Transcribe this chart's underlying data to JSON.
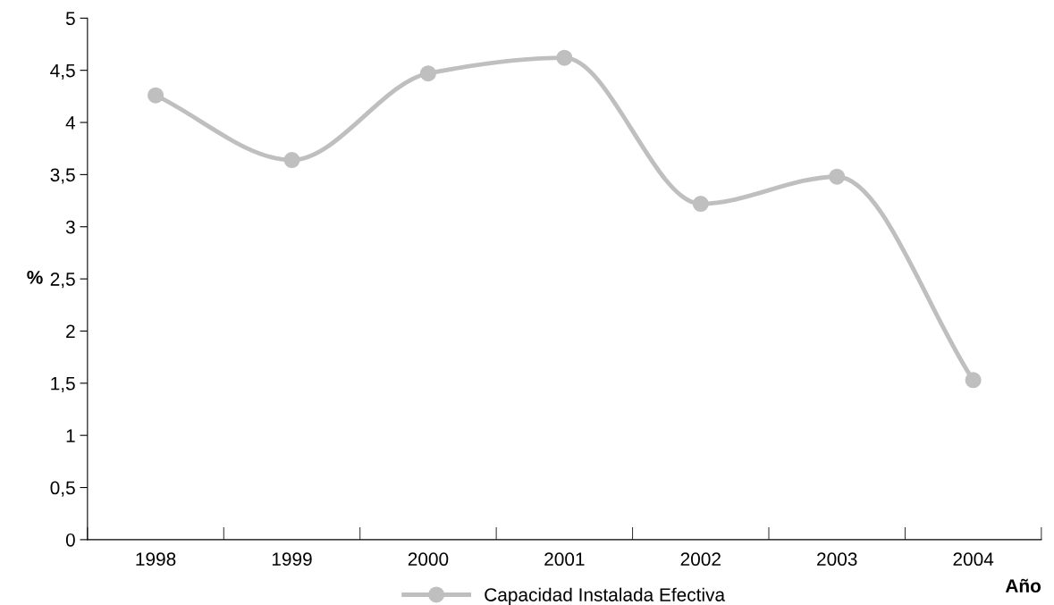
{
  "chart_data": {
    "type": "line",
    "xlabel": "Año",
    "ylabel": "%",
    "categories": [
      "1998",
      "1999",
      "2000",
      "2001",
      "2002",
      "2003",
      "2004"
    ],
    "series": [
      {
        "name": "Capacidad Instalada Efectiva",
        "color": "#bfbfbf",
        "values": [
          4.26,
          3.64,
          4.47,
          4.62,
          3.22,
          3.48,
          1.53
        ]
      }
    ],
    "ylim": [
      0,
      5
    ],
    "yticks": [
      0,
      {
        "value": 0.5,
        "label": "0,5"
      },
      1,
      {
        "value": 1.5,
        "label": "1,5"
      },
      2,
      {
        "value": 2.5,
        "label": "2,5"
      },
      3,
      {
        "value": 3.5,
        "label": "3,5"
      },
      4,
      {
        "value": 4.5,
        "label": "4,5"
      },
      5
    ],
    "grid": false,
    "legend": "bottom",
    "marker": "circle",
    "line_style": "solid"
  }
}
